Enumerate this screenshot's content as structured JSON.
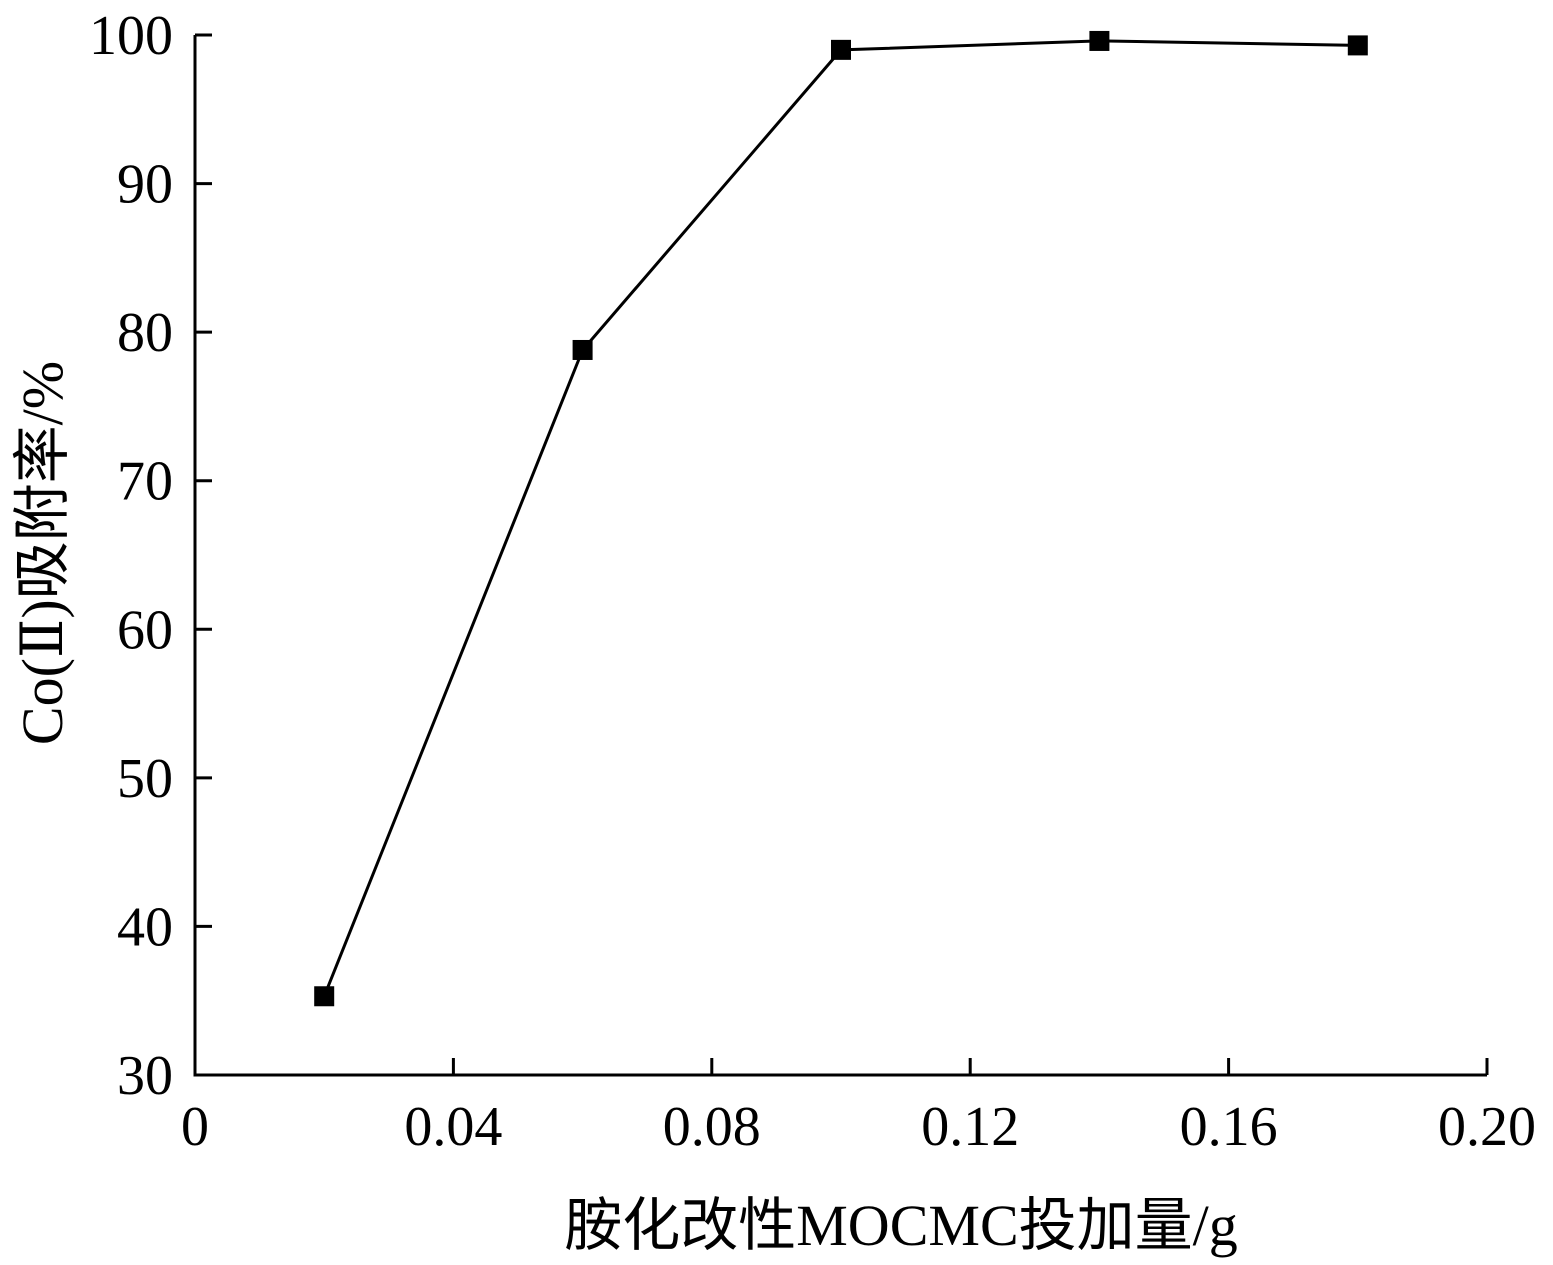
{
  "chart_data": {
    "type": "line",
    "title": "",
    "xlabel": "胺化改性MOCMC投加量/g",
    "ylabel": "Co(Ⅱ)吸附率/%",
    "xlim": [
      0,
      0.2
    ],
    "ylim": [
      30,
      100
    ],
    "xticks": [
      0,
      0.04,
      0.08,
      0.12,
      0.16,
      0.2
    ],
    "xtick_labels": [
      "0",
      "0.04",
      "0.08",
      "0.12",
      "0.16",
      "0.20"
    ],
    "yticks": [
      30,
      40,
      50,
      60,
      70,
      80,
      90,
      100
    ],
    "ytick_labels": [
      "30",
      "40",
      "50",
      "60",
      "70",
      "80",
      "90",
      "100"
    ],
    "grid": false,
    "legend": "none",
    "marker": "filled-square",
    "color": "#000000",
    "series": [
      {
        "x": [
          0.02,
          0.06,
          0.1,
          0.14,
          0.18
        ],
        "y": [
          35.3,
          78.8,
          99.0,
          99.6,
          99.3
        ]
      }
    ]
  }
}
